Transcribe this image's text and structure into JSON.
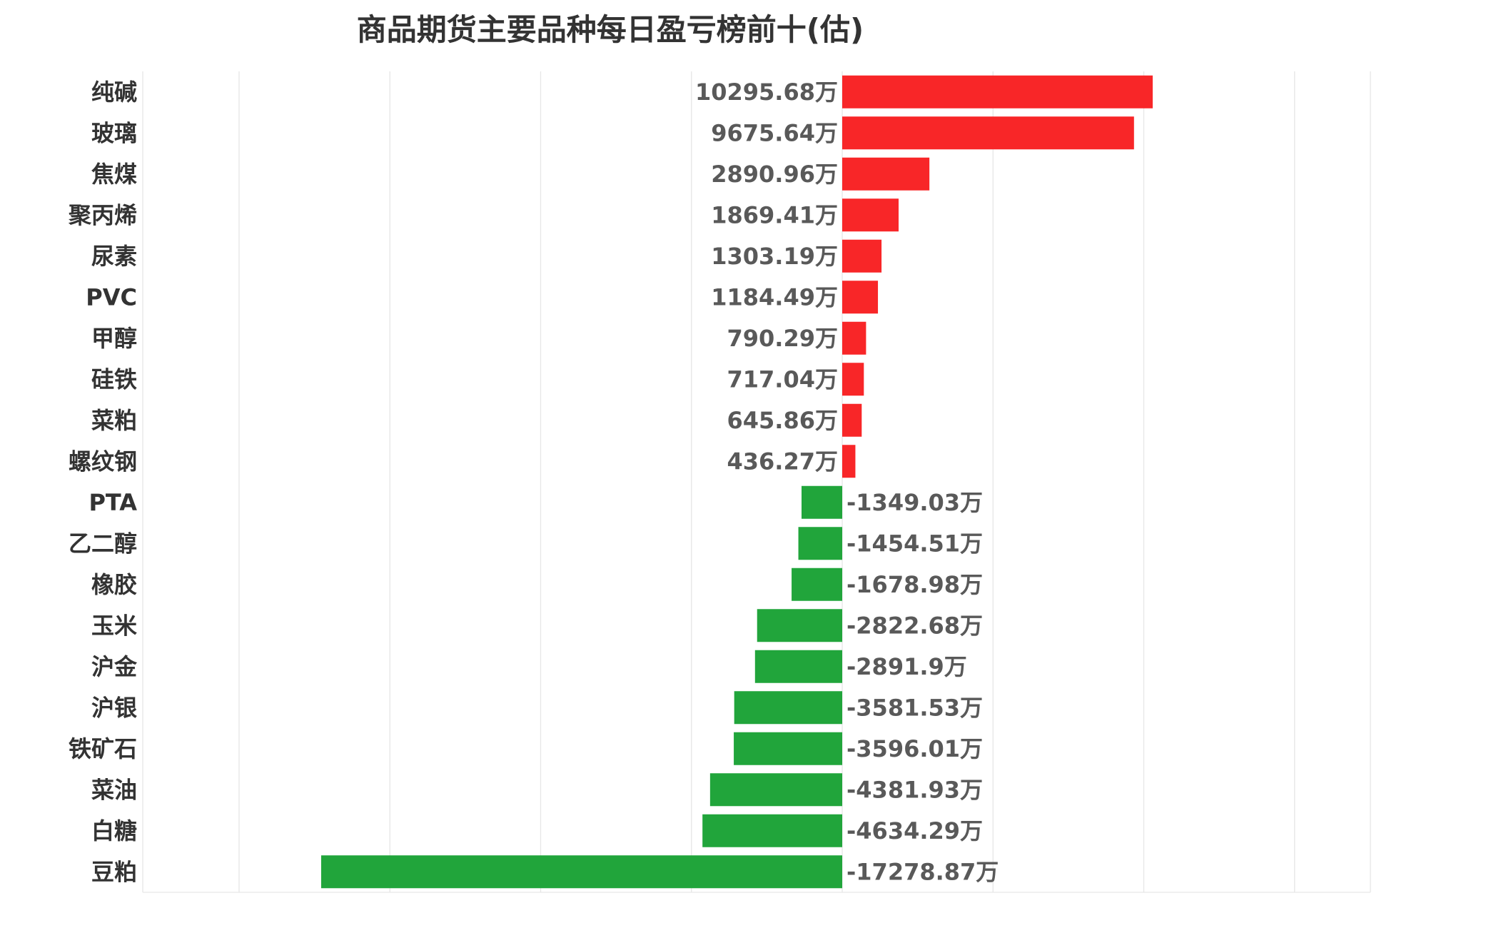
{
  "chart_data": {
    "type": "bar",
    "orientation": "horizontal",
    "title": "商品期货主要品种每日盈亏榜前十(估)",
    "unit_suffix": "万",
    "categories": [
      "纯碱",
      "玻璃",
      "焦煤",
      "聚丙烯",
      "尿素",
      "PVC",
      "甲醇",
      "硅铁",
      "菜粕",
      "螺纹钢",
      "PTA",
      "乙二醇",
      "橡胶",
      "玉米",
      "沪金",
      "沪银",
      "铁矿石",
      "菜油",
      "白糖",
      "豆粕"
    ],
    "values": [
      10295.68,
      9675.64,
      2890.96,
      1869.41,
      1303.19,
      1184.49,
      790.29,
      717.04,
      645.86,
      436.27,
      -1349.03,
      -1454.51,
      -1678.98,
      -2822.68,
      -2891.9,
      -3581.53,
      -3596.01,
      -4381.93,
      -4634.29,
      -17278.87
    ],
    "labels": [
      "10295.68万",
      "9675.64万",
      "2890.96万",
      "1869.41万",
      "1303.19万",
      "1184.49万",
      "790.29万",
      "717.04万",
      "645.86万",
      "436.27万",
      "-1349.03万",
      "-1454.51万",
      "-1678.98万",
      "-2822.68万",
      "-2891.9万",
      "-3581.53万",
      "-3596.01万",
      "-4381.93万",
      "-4634.29万",
      "-17278.87万"
    ],
    "xlim": [
      -20000,
      15000
    ],
    "grid_step": 5000,
    "grid": true,
    "legend": "none",
    "colors": {
      "positive": "#f82628",
      "negative": "#21a53b"
    }
  }
}
